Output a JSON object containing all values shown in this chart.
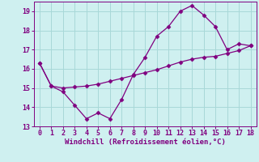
{
  "line1_x": [
    0,
    1,
    2,
    3,
    4,
    5,
    6,
    7,
    8,
    9,
    10,
    11,
    12,
    13,
    14,
    15,
    16,
    17,
    18
  ],
  "line1_y": [
    16.3,
    15.1,
    14.8,
    14.1,
    13.4,
    13.7,
    13.4,
    14.4,
    15.7,
    16.6,
    17.7,
    18.2,
    19.0,
    19.3,
    18.8,
    18.2,
    17.0,
    17.3,
    17.2
  ],
  "line2_x": [
    0,
    1,
    2,
    3,
    4,
    5,
    6,
    7,
    8,
    9,
    10,
    11,
    12,
    13,
    14,
    15,
    16,
    17,
    18
  ],
  "line2_y": [
    16.3,
    15.1,
    15.0,
    15.05,
    15.1,
    15.2,
    15.35,
    15.5,
    15.65,
    15.8,
    15.95,
    16.15,
    16.35,
    16.5,
    16.6,
    16.65,
    16.8,
    16.95,
    17.2
  ],
  "color": "#800080",
  "marker": "D",
  "markersize": 2.5,
  "linewidth": 0.9,
  "xlabel": "Windchill (Refroidissement éolien,°C)",
  "xlabel_fontsize": 6.5,
  "bg_color": "#cff0f0",
  "grid_color": "#a8d8d8",
  "axis_color": "#800080",
  "xlim": [
    -0.5,
    18.5
  ],
  "ylim": [
    13.0,
    19.5
  ],
  "yticks": [
    13,
    14,
    15,
    16,
    17,
    18,
    19
  ],
  "xticks": [
    0,
    1,
    2,
    3,
    4,
    5,
    6,
    7,
    8,
    9,
    10,
    11,
    12,
    13,
    14,
    15,
    16,
    17,
    18
  ],
  "tick_fontsize": 6.0
}
